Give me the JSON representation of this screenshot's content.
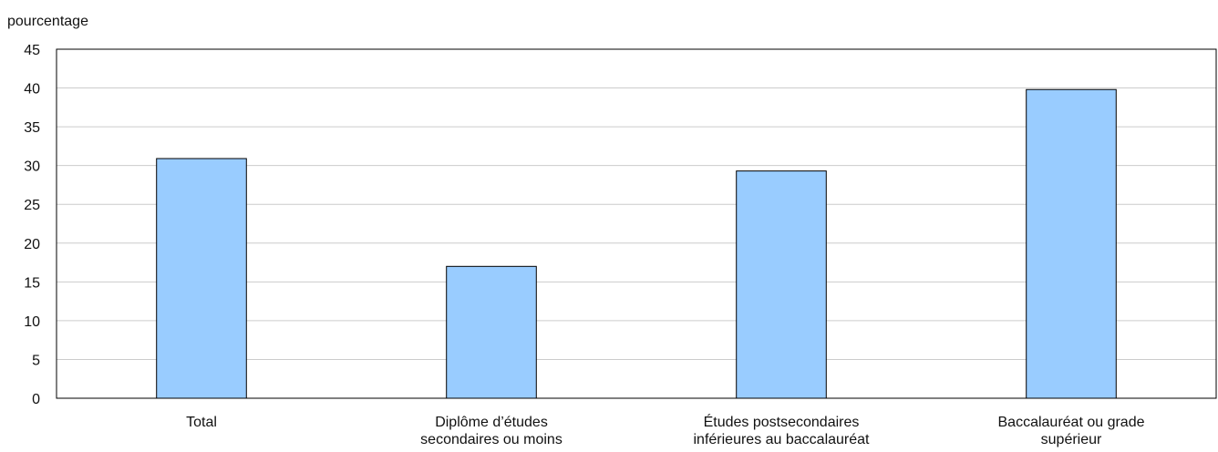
{
  "chart_data": {
    "type": "bar",
    "ylabel": "pourcentage",
    "categories": [
      [
        "Total"
      ],
      [
        "Diplôme d’études",
        "secondaires ou moins"
      ],
      [
        "Études postsecondaires",
        "inférieures au baccalauréat"
      ],
      [
        "Baccalauréat ou grade",
        "supérieur"
      ]
    ],
    "values": [
      30.9,
      17.0,
      29.3,
      39.8
    ],
    "ylim": [
      0,
      45
    ],
    "yticks": [
      0,
      5,
      10,
      15,
      20,
      25,
      30,
      35,
      40,
      45
    ],
    "grid": true,
    "colors": {
      "bar": "#99ccff",
      "bar_stroke": "#000000",
      "grid": "#cccccc",
      "axis": "#000000"
    }
  }
}
